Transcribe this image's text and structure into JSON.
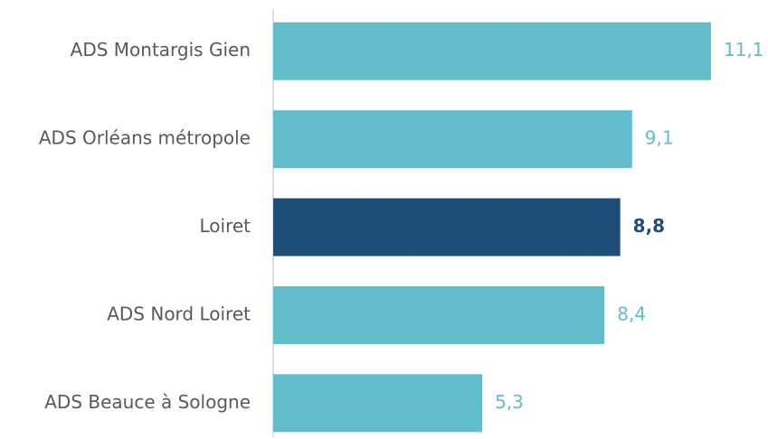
{
  "chart_data": {
    "type": "bar",
    "orientation": "horizontal",
    "categories": [
      "ADS Montargis Gien",
      "ADS Orléans métropole",
      "Loiret",
      "ADS Nord Loiret",
      "ADS Beauce à Sologne"
    ],
    "values": [
      11.1,
      9.1,
      8.8,
      8.4,
      5.3
    ],
    "value_labels": [
      "11,1",
      "9,1",
      "8,8",
      "8,4",
      "5,3"
    ],
    "colors": [
      "#63bccc",
      "#63bccc",
      "#1f4e79",
      "#63bccc",
      "#63bccc"
    ],
    "xlim": [
      0,
      12.5
    ]
  }
}
